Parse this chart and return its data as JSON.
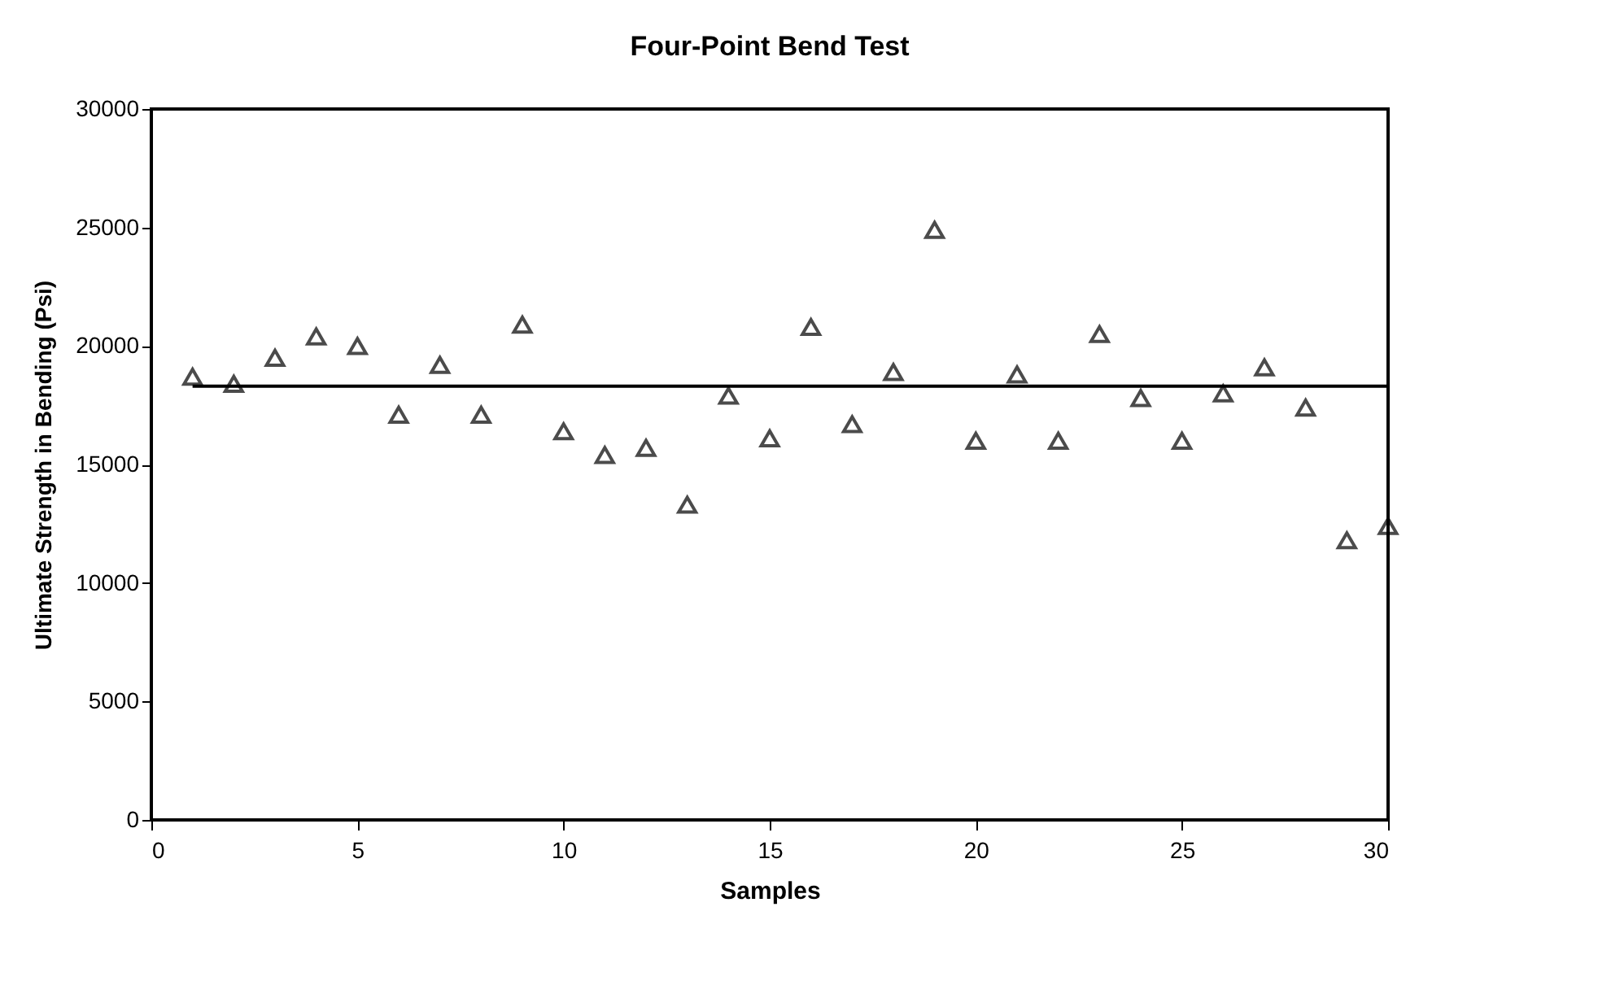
{
  "chart_data": {
    "type": "scatter",
    "title": "Four-Point Bend Test",
    "xlabel": "Samples",
    "ylabel": "Ultimate Strength in Bending (Psi)",
    "xlim": [
      0,
      30
    ],
    "xticks": [
      0,
      5,
      10,
      15,
      20,
      25,
      30
    ],
    "ylim": [
      0,
      30000
    ],
    "yticks": [
      0,
      5000,
      10000,
      15000,
      20000,
      25000,
      30000
    ],
    "grid": false,
    "series": [
      {
        "marker": "triangle",
        "color": "#000000",
        "x": [
          1,
          2,
          3,
          4,
          5,
          6,
          7,
          8,
          9,
          10,
          11,
          12,
          13,
          14,
          15,
          16,
          17,
          18,
          19,
          20,
          21,
          22,
          23,
          24,
          25,
          26,
          27,
          28,
          29,
          30
        ],
        "values": [
          18700,
          18400,
          19500,
          20400,
          20000,
          17100,
          19200,
          17100,
          20900,
          16400,
          15400,
          15700,
          13300,
          17900,
          16100,
          20800,
          16700,
          18900,
          24900,
          16000,
          18800,
          16000,
          20500,
          17800,
          16000,
          18000,
          19100,
          17400,
          11800,
          12400
        ]
      },
      {
        "type": "line",
        "marker": "none",
        "line_style": "solid",
        "color": "#000000",
        "x": [
          1,
          30
        ],
        "values": [
          18300,
          18300
        ]
      }
    ]
  }
}
